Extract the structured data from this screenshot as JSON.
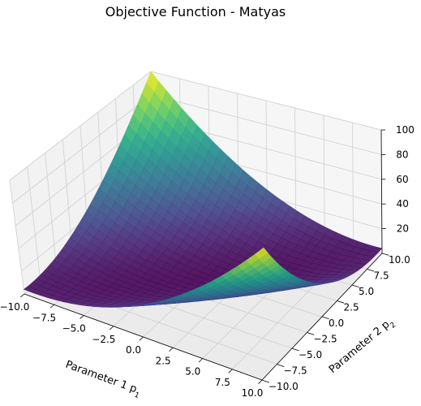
{
  "chart_data": {
    "type": "surface",
    "title": "Objective Function - Matyas",
    "function": "0.26*(p1^2 + p2^2) - 0.48*p1*p2",
    "colormap": "viridis",
    "xlabel": "Parameter 1 p",
    "xlabel_sub": "1",
    "ylabel": "Parameter 2 p",
    "ylabel_sub": "2",
    "xlim": [
      -10,
      10
    ],
    "ylim": [
      -10,
      10
    ],
    "zlim": [
      0,
      100
    ],
    "x_ticks": [
      "−10.0",
      "−7.5",
      "−5.0",
      "−2.5",
      "0.0",
      "2.5",
      "5.0",
      "7.5",
      "10.0"
    ],
    "y_ticks": [
      "−10.0",
      "−7.5",
      "−5.0",
      "−2.5",
      "0.0",
      "2.5",
      "5.0",
      "7.5",
      "10.0"
    ],
    "z_ticks": [
      "20",
      "40",
      "60",
      "80",
      "100"
    ],
    "x_tick_values": [
      -10,
      -7.5,
      -5,
      -2.5,
      0,
      2.5,
      5,
      7.5,
      10
    ],
    "y_tick_values": [
      -10,
      -7.5,
      -5,
      -2.5,
      0,
      2.5,
      5,
      7.5,
      10
    ],
    "z_tick_values": [
      20,
      40,
      60,
      80,
      100
    ],
    "grid": true
  }
}
